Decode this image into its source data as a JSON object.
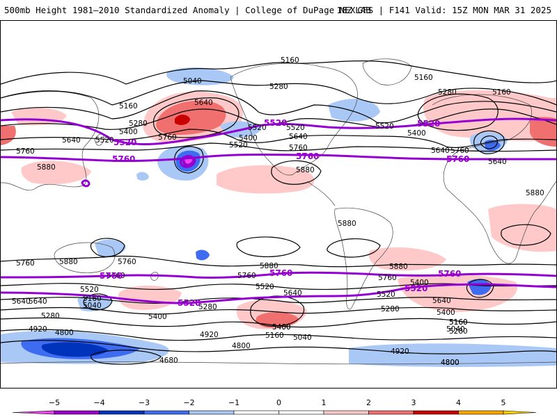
{
  "header": {
    "title_left": "500mb Height 1981–2010 Standardized Anomaly | College of DuPage NEXLAB",
    "title_right": "18Z GFS | F141 Valid: 15Z MON MAR 31 2025"
  },
  "colors": {
    "contour": "#000000",
    "highlight_contour": "#9400d3",
    "coast": "#444444"
  },
  "legend": {
    "ticks": [
      "−5",
      "−4",
      "−3",
      "−2",
      "−1",
      "0",
      "1",
      "2",
      "3",
      "4",
      "5"
    ],
    "bins": [
      {
        "from": -5,
        "to": -4,
        "color": "#9a00cc"
      },
      {
        "from": -4,
        "to": -3,
        "color": "#0033bb"
      },
      {
        "from": -3,
        "to": -2,
        "color": "#3d6cf0"
      },
      {
        "from": -2,
        "to": -1,
        "color": "#a9c8f5"
      },
      {
        "from": -1,
        "to": 0,
        "color": "#ffffff"
      },
      {
        "from": 0,
        "to": 1,
        "color": "#ffffff"
      },
      {
        "from": 1,
        "to": 2,
        "color": "#ffc9c9"
      },
      {
        "from": 2,
        "to": 3,
        "color": "#f07070"
      },
      {
        "from": 3,
        "to": 4,
        "color": "#c80000"
      },
      {
        "from": 4,
        "to": 5,
        "color": "#ffa500"
      }
    ],
    "end_low_color": "#ee44ee",
    "end_high_color": "#ffd000"
  },
  "contour_labels": [
    "5160",
    "5040",
    "5160",
    "5280",
    "5160",
    "5280",
    "5640",
    "5160",
    "5280",
    "5400",
    "5520",
    "5640",
    "5760",
    "5520",
    "5400",
    "5640",
    "5520",
    "5520",
    "5520",
    "5400",
    "5640",
    "5760",
    "5760",
    "5880",
    "5760",
    "5880",
    "5880",
    "5640",
    "5760",
    "5640",
    "5880",
    "5880",
    "5760",
    "5760",
    "5880",
    "5760",
    "5880",
    "5760",
    "5520",
    "5640",
    "5160",
    "5040",
    "5280",
    "5400",
    "5520",
    "5280",
    "5640",
    "5400",
    "5520",
    "5640",
    "5400",
    "5160",
    "5280",
    "5400",
    "4920",
    "4800",
    "4920",
    "4800",
    "4680",
    "5400",
    "5160",
    "5040",
    "4920",
    "4800",
    "5280",
    "5160",
    "5040",
    "4800"
  ],
  "highlight_labels": [
    "5520",
    "5520",
    "5520",
    "5760",
    "5760",
    "5760",
    "5760",
    "5760",
    "5520",
    "5520"
  ]
}
